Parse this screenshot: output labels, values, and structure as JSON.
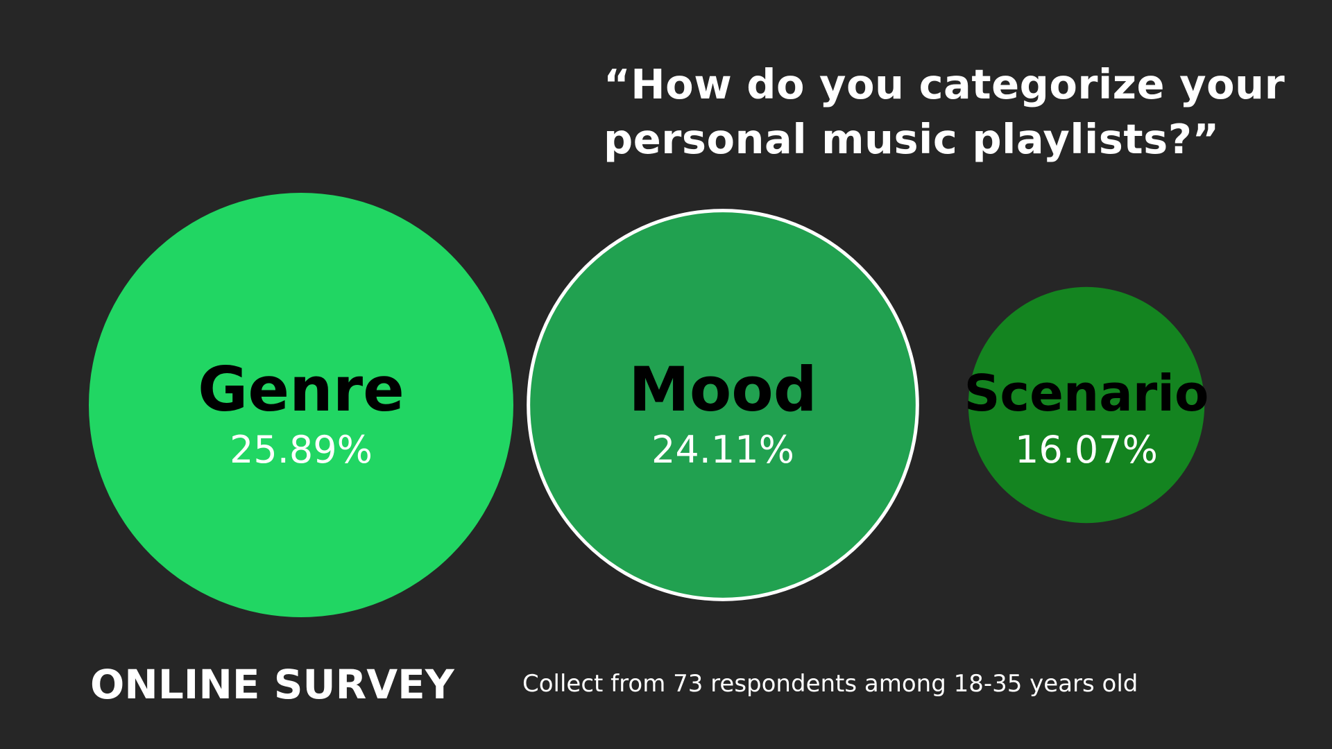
{
  "question": "“How do you categorize your personal music playlists?”",
  "footer": {
    "title": "ONLINE SURVEY",
    "note": "Collect from 73 respondents among 18-35 years old"
  },
  "chart_data": {
    "type": "bubble",
    "title": "“How do you categorize your personal music playlists?”",
    "categories": [
      "Genre",
      "Mood",
      "Scenario"
    ],
    "values": [
      25.89,
      24.11,
      16.07
    ],
    "value_labels": [
      "25.89%",
      "24.11%",
      "16.07%"
    ],
    "unit": "%",
    "colors": [
      "#21d663",
      "#21a150",
      "#148420"
    ],
    "highlighted": "Mood",
    "highlight_outline_color": "#ffffff",
    "label_color": "#000000",
    "value_label_color": "#ffffff"
  },
  "colors": {
    "background": "#262626",
    "text": "#ffffff"
  }
}
